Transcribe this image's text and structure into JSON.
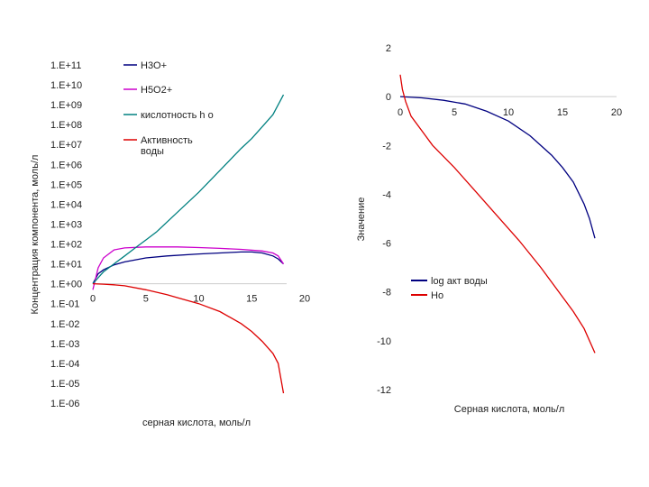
{
  "chart_data": [
    {
      "type": "line",
      "title": "",
      "xlabel": "серная кислота, моль/л",
      "ylabel": "Концентрация компонента, моль/л",
      "y_scale": "log",
      "ylim_log10": [
        -6,
        11
      ],
      "xlim": [
        0,
        20
      ],
      "y_tick_labels": [
        "1.E+11",
        "1.E+10",
        "1.E+09",
        "1.E+08",
        "1.E+07",
        "1.E+06",
        "1.E+05",
        "1.E+04",
        "1.E+03",
        "1.E+02",
        "1.E+01",
        "1.E+00",
        "1.E-01",
        "1.E-02",
        "1.E-03",
        "1.E-04",
        "1.E-05",
        "1.E-06"
      ],
      "x_tick_labels": [
        "0",
        "5",
        "10",
        "15",
        "20"
      ],
      "legend_placement": "top",
      "series": [
        {
          "name": "H3O+",
          "color": "#000080",
          "x": [
            0,
            0.5,
            1,
            2,
            3,
            5,
            7,
            10,
            12,
            14,
            15,
            16,
            17,
            17.5,
            18
          ],
          "log10y": [
            0,
            0.5,
            0.7,
            0.95,
            1.1,
            1.3,
            1.4,
            1.5,
            1.55,
            1.6,
            1.6,
            1.55,
            1.4,
            1.25,
            1.0
          ]
        },
        {
          "name": "H5O2+",
          "color": "#cc00cc",
          "x": [
            0,
            0.5,
            1,
            2,
            3,
            5,
            8,
            10,
            12,
            14,
            16,
            17,
            17.5,
            18
          ],
          "log10y": [
            -0.3,
            0.8,
            1.3,
            1.7,
            1.8,
            1.85,
            1.85,
            1.82,
            1.78,
            1.73,
            1.65,
            1.55,
            1.4,
            1.0
          ]
        },
        {
          "name": "кислотность h о",
          "color": "#008080",
          "x": [
            0,
            0.5,
            1,
            2,
            3,
            4,
            5,
            6,
            8,
            10,
            12,
            14,
            15,
            16,
            17,
            18
          ],
          "log10y": [
            0,
            0.3,
            0.6,
            1.0,
            1.4,
            1.8,
            2.2,
            2.6,
            3.6,
            4.6,
            5.7,
            6.8,
            7.3,
            7.9,
            8.5,
            9.5
          ]
        },
        {
          "name": "Активность воды",
          "color": "#dd0000",
          "x": [
            0,
            1,
            2,
            3,
            5,
            7,
            8,
            10,
            12,
            14,
            15,
            16,
            17,
            17.5,
            18
          ],
          "log10y": [
            0,
            -0.02,
            -0.05,
            -0.1,
            -0.3,
            -0.55,
            -0.7,
            -1.0,
            -1.4,
            -2.0,
            -2.4,
            -2.9,
            -3.5,
            -4.0,
            -5.5
          ]
        }
      ]
    },
    {
      "type": "line",
      "title": "",
      "xlabel": "Серная кислота, моль/л",
      "ylabel": "Значение",
      "xlim": [
        0,
        20
      ],
      "ylim": [
        -12,
        2
      ],
      "y_tick_labels": [
        "2",
        "0",
        "-2",
        "-4",
        "-6",
        "-8",
        "-10",
        "-12"
      ],
      "x_tick_labels": [
        "0",
        "5",
        "10",
        "15",
        "20"
      ],
      "legend_placement": "bottom-left",
      "series": [
        {
          "name": "log акт воды",
          "color": "#000080",
          "x": [
            0,
            2,
            4,
            6,
            8,
            10,
            12,
            14,
            15,
            16,
            17,
            17.5,
            18
          ],
          "y": [
            0,
            -0.05,
            -0.15,
            -0.3,
            -0.6,
            -1.0,
            -1.6,
            -2.4,
            -2.9,
            -3.5,
            -4.4,
            -5.0,
            -5.8
          ]
        },
        {
          "name": "Ho",
          "color": "#dd0000",
          "x": [
            0,
            0.2,
            0.5,
            1,
            2,
            3,
            5,
            7,
            9,
            11,
            13,
            15,
            16,
            17,
            18
          ],
          "y": [
            0.9,
            0.3,
            -0.2,
            -0.8,
            -1.4,
            -2.0,
            -2.9,
            -3.9,
            -4.9,
            -5.9,
            -7.0,
            -8.2,
            -8.8,
            -9.5,
            -10.5
          ]
        }
      ]
    }
  ]
}
